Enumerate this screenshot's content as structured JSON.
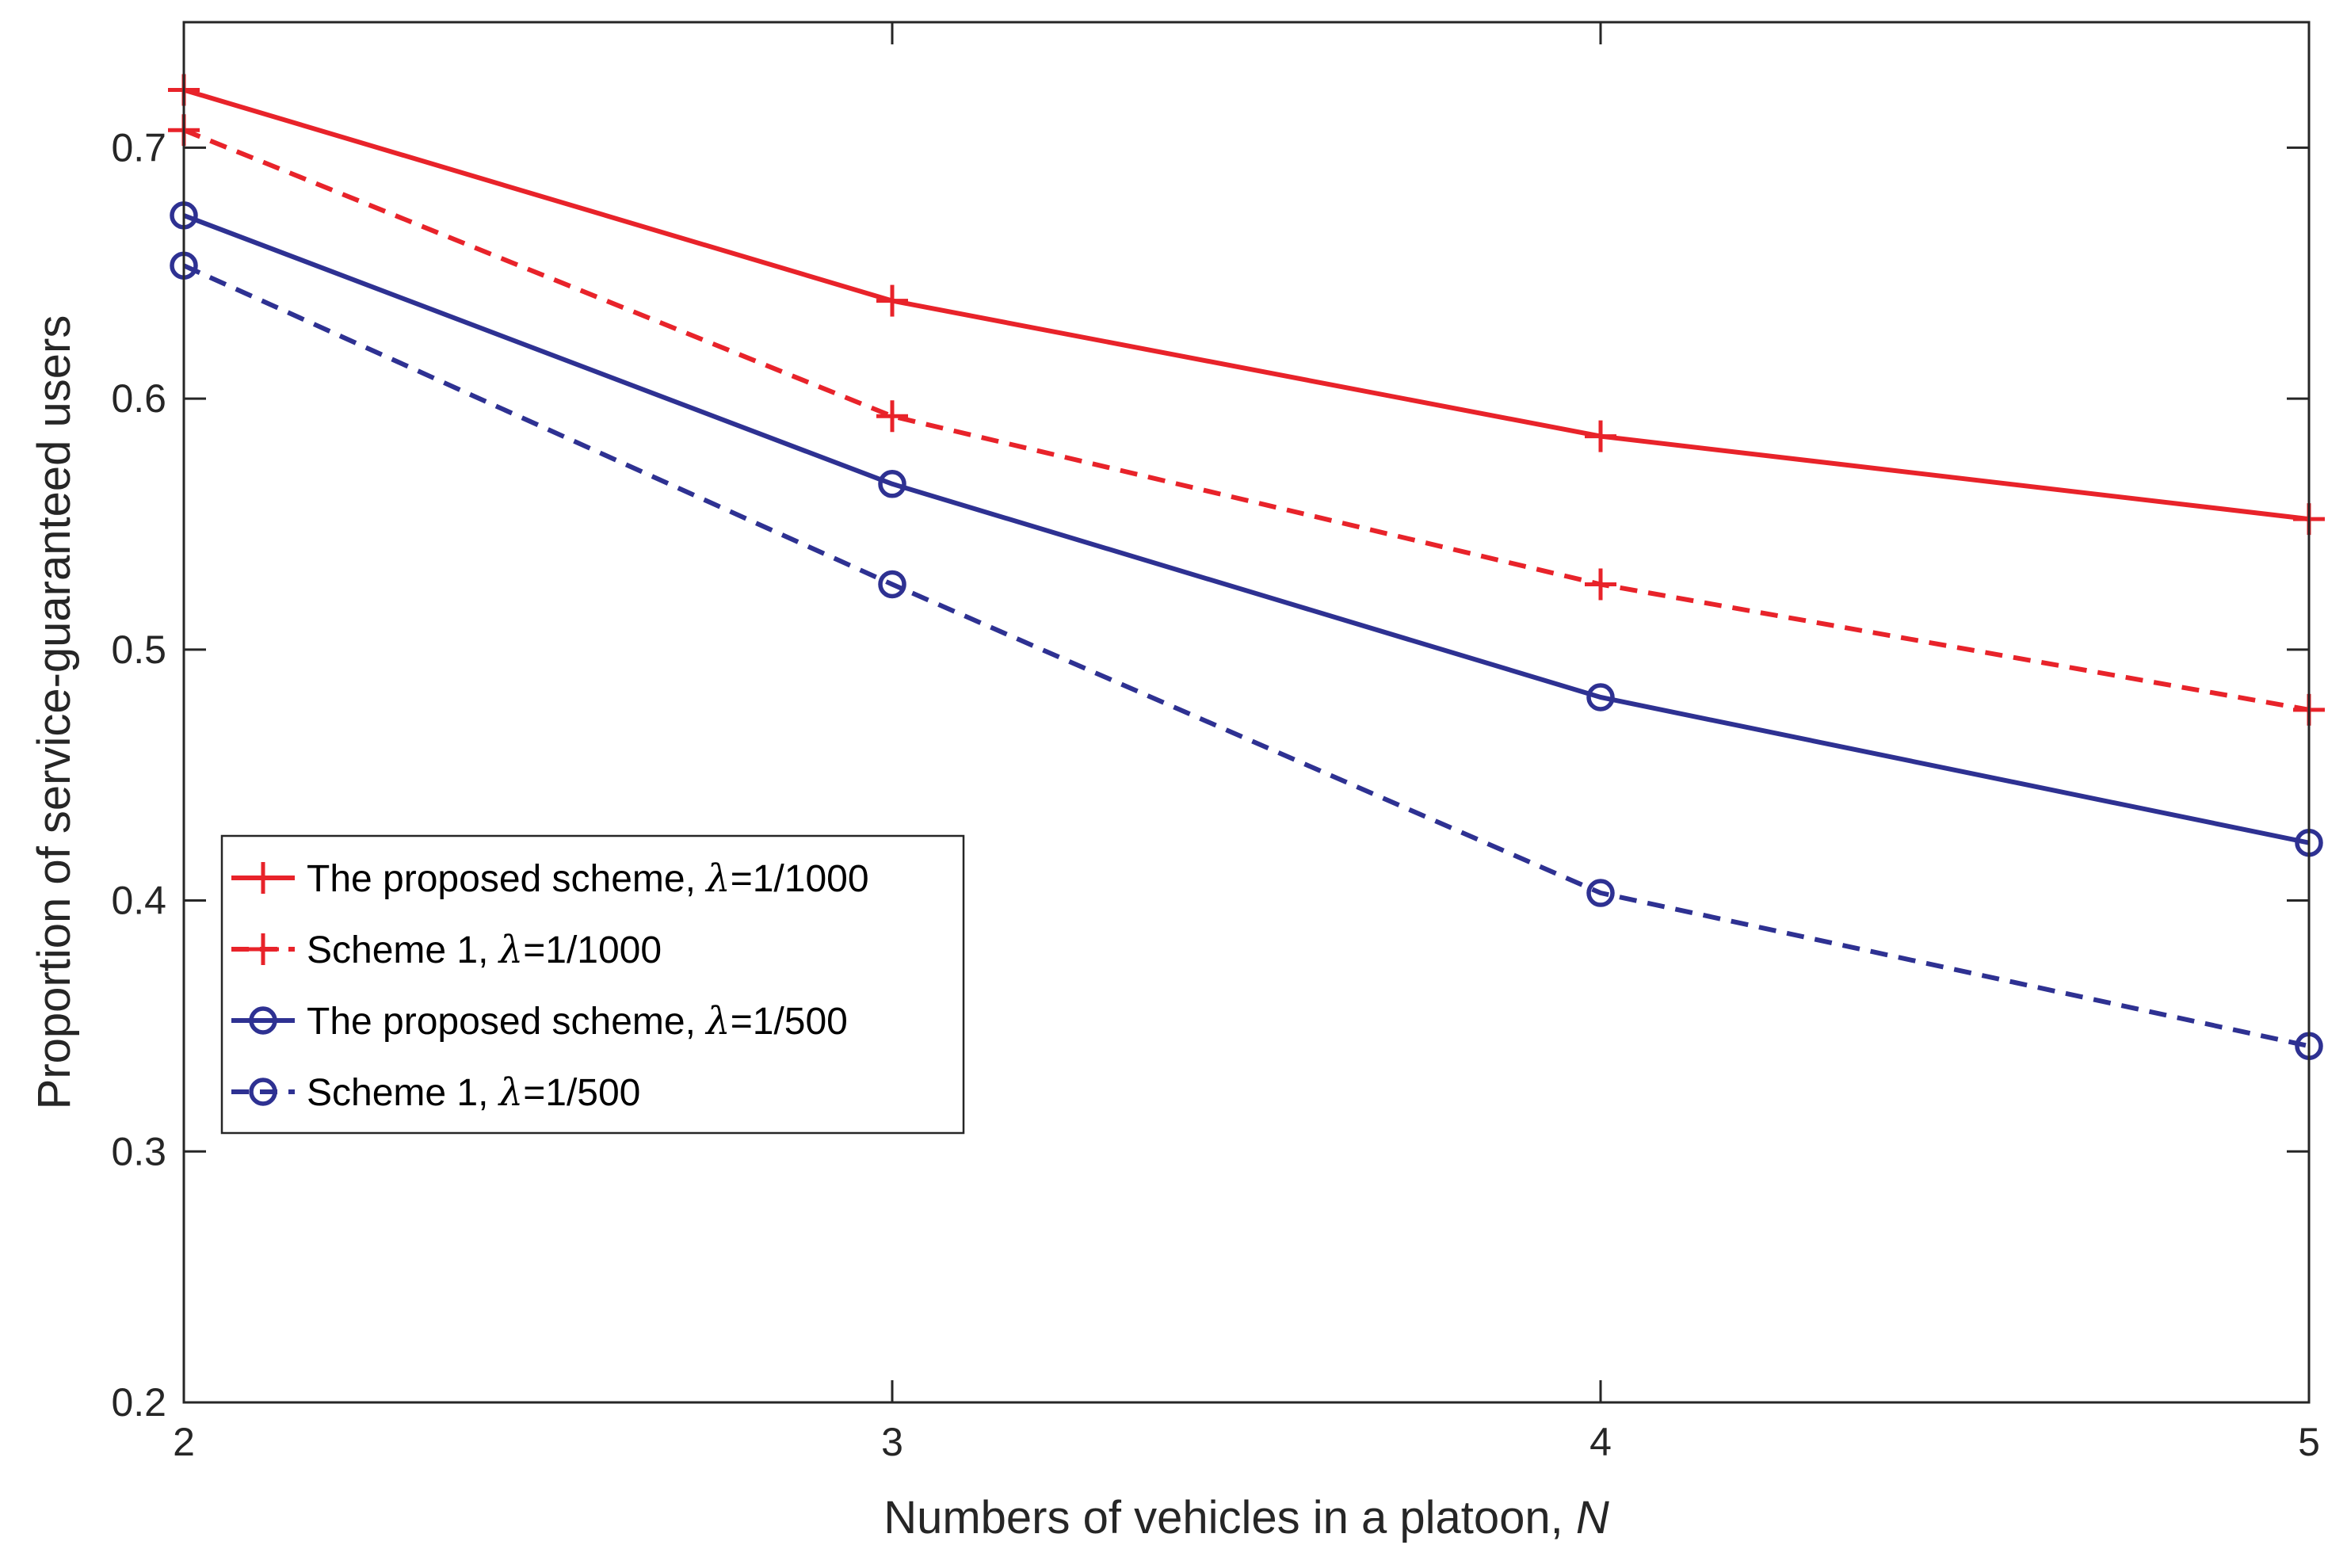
{
  "chart_data": {
    "type": "line",
    "title": "",
    "xlabel": "Numbers of vehicles in a platoon, ",
    "xlabel_var": "N",
    "ylabel": "Proportion of service-guaranteed users",
    "x": [
      2,
      3,
      4,
      5
    ],
    "xlim": [
      2,
      5
    ],
    "ylim": [
      0.2,
      0.75
    ],
    "xticks": [
      "2",
      "3",
      "4",
      "5"
    ],
    "yticks": [
      "0.2",
      "0.3",
      "0.4",
      "0.5",
      "0.6",
      "0.7"
    ],
    "ytick_values": [
      0.2,
      0.3,
      0.4,
      0.5,
      0.6,
      0.7
    ],
    "grid": false,
    "legend_position": "center-left",
    "series": [
      {
        "name": "The proposed scheme, λ=1/1000",
        "label_prefix": "The proposed scheme, ",
        "lambda_symbol": "λ",
        "label_suffix": "=1/1000",
        "values": [
          0.723,
          0.639,
          0.585,
          0.552
        ],
        "color": "#e8232a",
        "dash": "solid",
        "marker": "plus"
      },
      {
        "name": "Scheme 1, λ=1/1000",
        "label_prefix": "Scheme 1, ",
        "lambda_symbol": "λ",
        "label_suffix": "=1/1000",
        "values": [
          0.707,
          0.593,
          0.526,
          0.476
        ],
        "color": "#e8232a",
        "dash": "dashed",
        "marker": "plus"
      },
      {
        "name": "The proposed scheme, λ=1/500",
        "label_prefix": "The proposed scheme, ",
        "lambda_symbol": "λ",
        "label_suffix": "=1/500",
        "values": [
          0.673,
          0.566,
          0.481,
          0.423
        ],
        "color": "#2e3192",
        "dash": "solid",
        "marker": "circle"
      },
      {
        "name": "Scheme 1, λ=1/500",
        "label_prefix": "Scheme 1, ",
        "lambda_symbol": "λ",
        "label_suffix": "=1/500",
        "values": [
          0.653,
          0.526,
          0.403,
          0.342
        ],
        "color": "#2e3192",
        "dash": "dashed",
        "marker": "circle"
      }
    ]
  }
}
